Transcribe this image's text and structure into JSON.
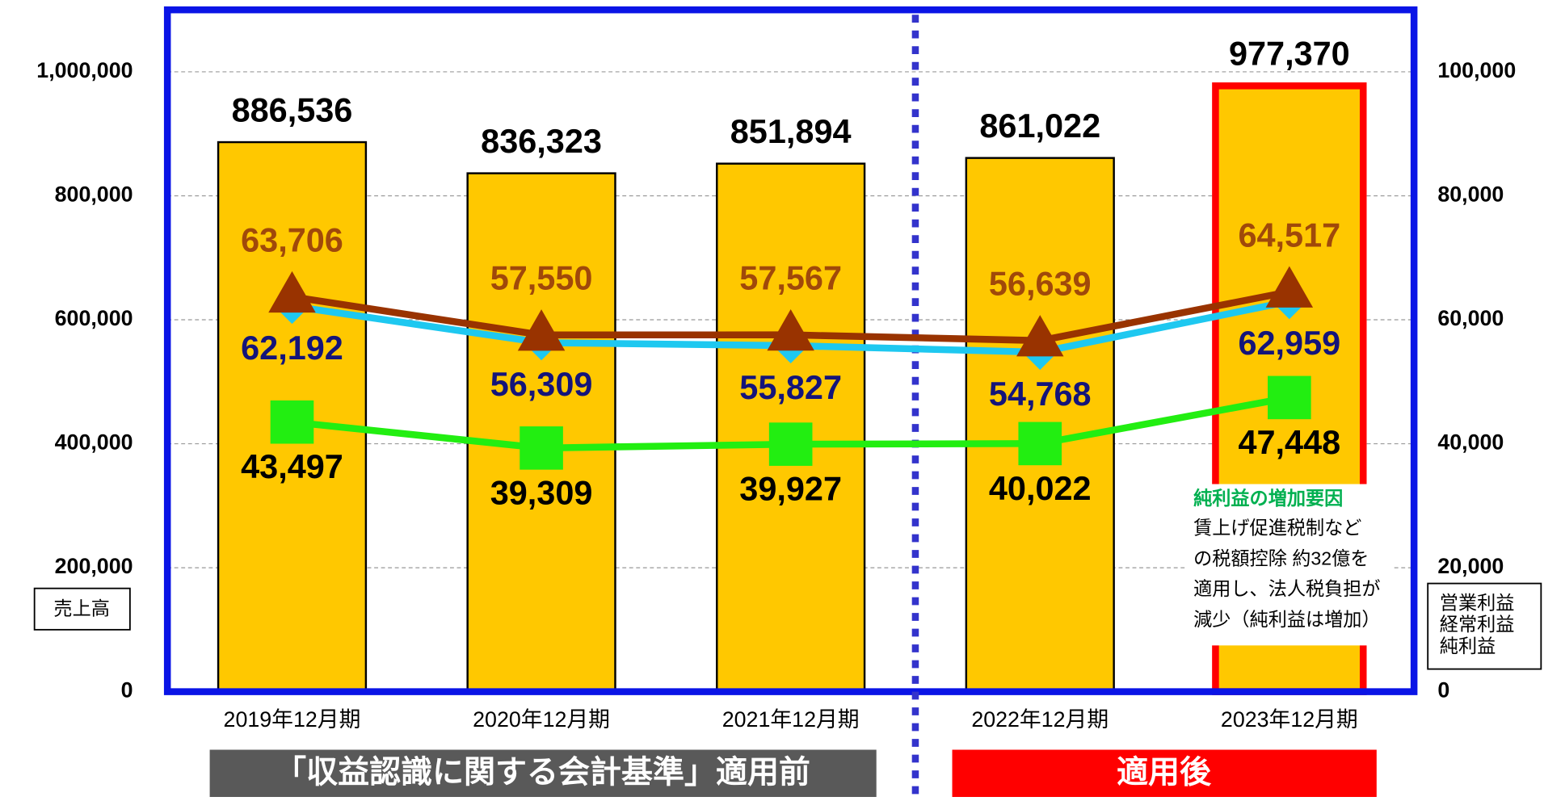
{
  "chart_data": {
    "type": "bar_line",
    "categories": [
      "2019年12月期",
      "2020年12月期",
      "2021年12月期",
      "2022年12月期",
      "2023年12月期"
    ],
    "ylabel": "売上高",
    "ylim": [
      0,
      1100000
    ],
    "yticks": [
      0,
      {
        "value": 200000,
        "label": "200,000"
      },
      {
        "value": 400000,
        "label": "400,000"
      },
      {
        "value": 600000,
        "label": "600,000"
      },
      {
        "value": 800000,
        "label": "800,000"
      },
      {
        "value": 1000000,
        "label": "1,000,000"
      }
    ],
    "y2lim": [
      0,
      110000
    ],
    "y2ticks": [
      0,
      {
        "value": 20000,
        "label": "20,000"
      },
      {
        "value": 40000,
        "label": "40,000"
      },
      {
        "value": 60000,
        "label": "60,000"
      },
      {
        "value": 80000,
        "label": "80,000"
      },
      {
        "value": 100000,
        "label": "100,000"
      }
    ],
    "grid": true,
    "highlight_index": 4,
    "highlight_color": "#ff0000",
    "series": [
      {
        "name": "売上高",
        "type": "bar",
        "color": "#ffc800",
        "label_color": "#000000",
        "values": [
          886536,
          836323,
          851894,
          861022,
          977370
        ],
        "value_labels": [
          "886,536",
          "836,323",
          "851,894",
          "861,022",
          "977,370"
        ]
      },
      {
        "name": "営業利益",
        "type": "line",
        "axis": "y2",
        "marker": "diamond",
        "color": "#1ec8f0",
        "label_color": "#14147a",
        "values": [
          62192,
          56309,
          55827,
          54768,
          62959
        ],
        "value_labels": [
          "62,192",
          "56,309",
          "55,827",
          "54,768",
          "62,959"
        ]
      },
      {
        "name": "経常利益",
        "type": "line",
        "axis": "y2",
        "marker": "triangle",
        "color": "#993300",
        "label_color": "#a0490a",
        "values": [
          63706,
          57550,
          57567,
          56639,
          64517
        ],
        "value_labels": [
          "63,706",
          "57,550",
          "57,567",
          "56,639",
          "64,517"
        ]
      },
      {
        "name": "純利益",
        "type": "line",
        "axis": "y2",
        "marker": "square",
        "color": "#22ee11",
        "label_color": "#000000",
        "values": [
          43497,
          39309,
          39927,
          40022,
          47448
        ],
        "value_labels": [
          "43,497",
          "39,309",
          "39,927",
          "40,022",
          "47,448"
        ]
      }
    ],
    "annotation": {
      "title": "純利益の増加要因",
      "lines": [
        "賃上げ促進税制など",
        "の税額控除 約32億を",
        "適用し、法人税負担が",
        "減少（純利益は増加）"
      ]
    },
    "banners": [
      "「収益認識に関する会計基準」適用前",
      "適用後"
    ]
  }
}
